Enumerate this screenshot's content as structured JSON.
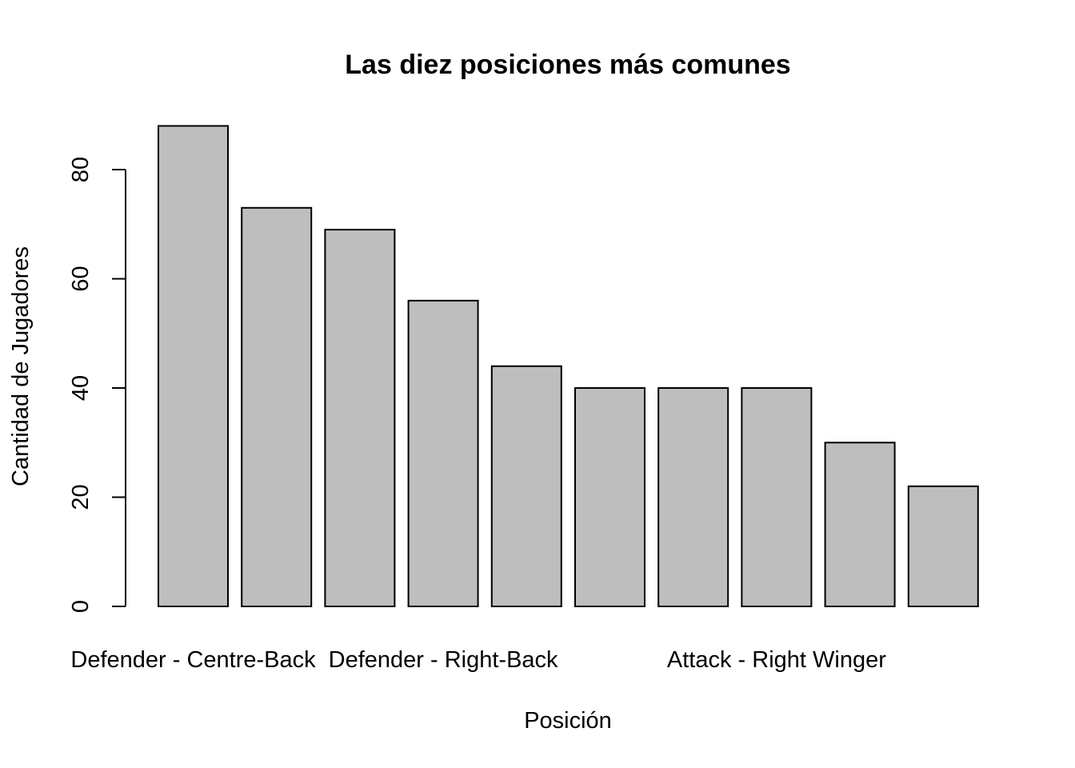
{
  "chart_data": {
    "type": "bar",
    "title": "Las diez posiciones más comunes",
    "xlabel": "Posición",
    "ylabel": "Cantidad de Jugadores",
    "categories": [
      "Defender - Centre-Back",
      "",
      "",
      "Defender - Right-Back",
      "",
      "",
      "",
      "Attack - Right Winger",
      "",
      ""
    ],
    "values": [
      88,
      73,
      69,
      56,
      44,
      40,
      40,
      40,
      30,
      22
    ],
    "ylim": [
      0,
      80
    ],
    "yticks": [
      0,
      20,
      40,
      60,
      80
    ],
    "grid": false,
    "bar_color": "#bebebe"
  }
}
